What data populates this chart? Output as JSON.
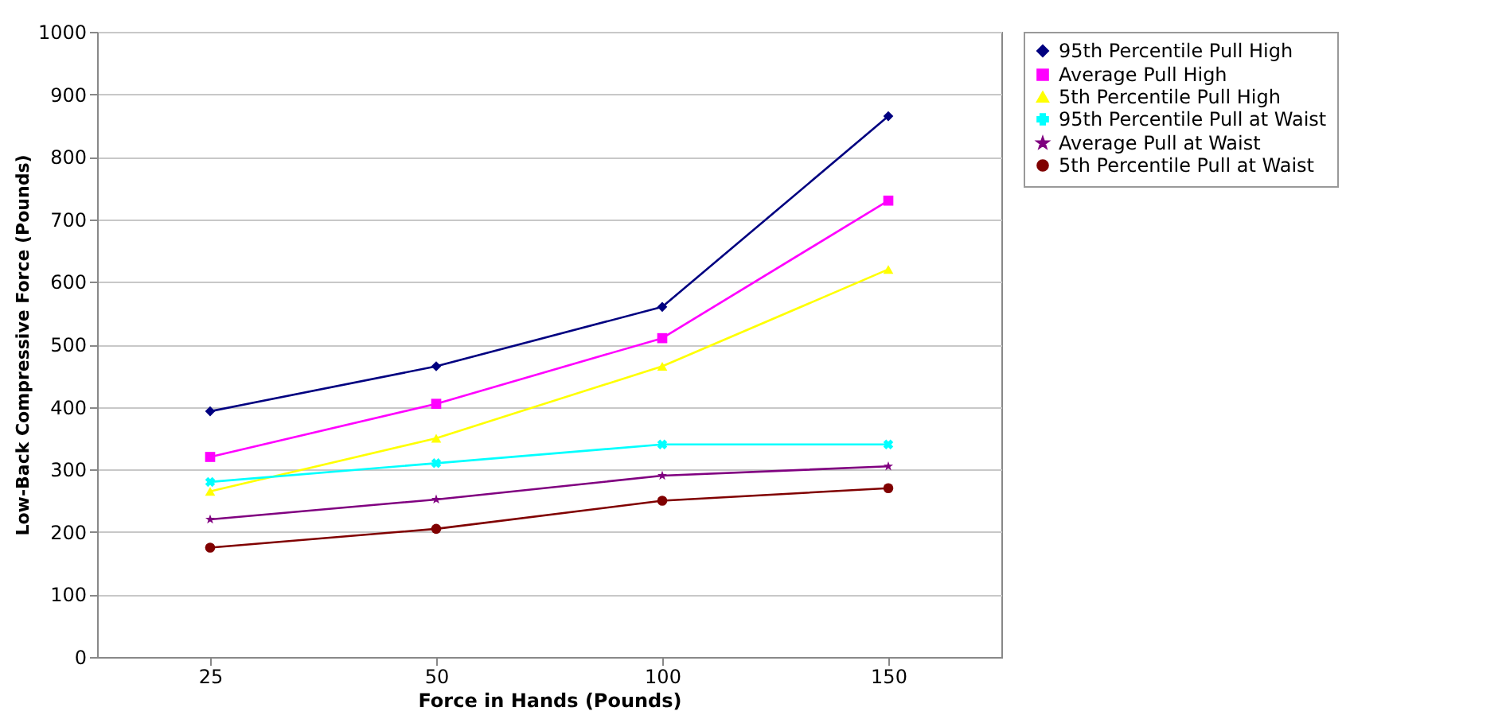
{
  "chart_data": {
    "type": "line",
    "xlabel": "Force in Hands (Pounds)",
    "ylabel": "Low-Back Compressive Force (Pounds)",
    "categories": [
      "25",
      "50",
      "100",
      "150"
    ],
    "ylim": [
      0,
      1000
    ],
    "yticks": [
      0,
      100,
      200,
      300,
      400,
      500,
      600,
      700,
      800,
      900,
      1000
    ],
    "grid": "y",
    "legend": "right",
    "series": [
      {
        "name": "95th Percentile Pull High",
        "color": "#000080",
        "marker": "diamond",
        "values": [
          393,
          465,
          560,
          865
        ]
      },
      {
        "name": "Average Pull High",
        "color": "#ff00ff",
        "marker": "square",
        "values": [
          320,
          405,
          510,
          730
        ]
      },
      {
        "name": "5th Percentile Pull High",
        "color": "#ffff00",
        "marker": "triangle",
        "values": [
          265,
          350,
          465,
          620
        ]
      },
      {
        "name": "95th Percentile Pull at Waist",
        "color": "#00ffff",
        "marker": "cross",
        "values": [
          280,
          310,
          340,
          340
        ]
      },
      {
        "name": "Average Pull at Waist",
        "color": "#800080",
        "marker": "star",
        "values": [
          220,
          252,
          290,
          305
        ]
      },
      {
        "name": "5th Percentile Pull at Waist",
        "color": "#800000",
        "marker": "circle",
        "values": [
          175,
          205,
          250,
          270
        ]
      }
    ]
  }
}
